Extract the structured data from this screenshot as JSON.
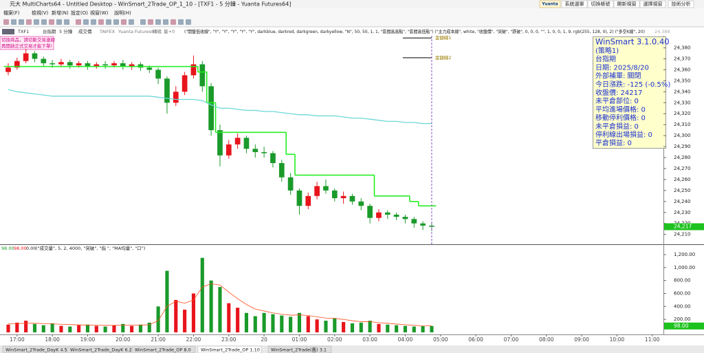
{
  "window": {
    "title": "元大 MultiCharts64 - Untitled Desktop - WinSmart_2Trade_OP_1_10 - [TXF1 - 5 分鐘 - Yuanta Futures64]",
    "logo": "Yuanta",
    "buttons": [
      "系統選單",
      "切換帳號",
      "開新視窗",
      "選擇視窗",
      "技術分析"
    ],
    "menu": [
      "檔案(F)",
      "檢視(V)",
      "新增(N)",
      "設定(O)",
      "視窗(W)",
      "說明(H)"
    ]
  },
  "chart_header": {
    "items": [
      "TXF1",
      "台指期",
      "5 分鐘",
      "成交價",
      "TAIFEX",
      "Yuanta Futures64",
      "精確",
      "量+0"
    ],
    "studies": "(\"開盤低收線\", \"Y\", \"Y\", \"Y\", \"Y\", \"Y\", darkblue, darkred, darkgreen, darkyellow, \"N\", 50, 50, 1, 1, \"區間高高點\", \"區間高低點\")   (\"主力成本線\", white, \"收盤價\", \"突破\", \"跌破\", 0, 0, 0, \"\", 1, 0, 0, 1, 9, rgb(255, 128, 0), 2)   (\"多空K線\", 20)",
    "right": "24,388"
  },
  "notice": [
    "切換商品，請切斷交易連線",
    "再開啟正式交易才能下單!"
  ],
  "info_box": {
    "title": "WinSmart 3.1.0.40",
    "lines": [
      "(策略1)",
      "台指期",
      "日期: 2025/8/20",
      "外部補單: 關閉",
      "今日漲跌: -125 (-0.5%)",
      "收盤價: 24217",
      "未平倉部位: 0",
      "平均進場價格: 0",
      "移動停利價格: 0",
      "未平倉損益: 0",
      "停利線出場損益: 0",
      "平倉損益: 0"
    ]
  },
  "chart_data": [
    {
      "type": "candlestick",
      "x": [
        "16:45",
        "17:00",
        "17:15",
        "17:30",
        "17:45",
        "18:00",
        "18:15",
        "18:30",
        "18:45",
        "19:00",
        "19:15",
        "19:30",
        "19:45",
        "20:00",
        "20:15",
        "20:30",
        "20:45",
        "21:00",
        "21:15",
        "21:30",
        "21:45",
        "22:00",
        "22:15",
        "22:30",
        "22:45",
        "23:00",
        "23:15",
        "23:30",
        "23:45",
        "00:00",
        "00:15",
        "00:30",
        "00:45",
        "01:00",
        "01:15",
        "01:30",
        "01:45",
        "02:00",
        "02:15",
        "02:30",
        "02:45",
        "03:00",
        "03:15",
        "03:30",
        "03:45",
        "04:00",
        "04:15",
        "04:30",
        "04:45"
      ],
      "open": [
        24358,
        24362,
        24368,
        24375,
        24370,
        24366,
        24365,
        24367,
        24364,
        24366,
        24363,
        24365,
        24364,
        24366,
        24363,
        24365,
        24362,
        24360,
        24352,
        24330,
        24340,
        24355,
        24365,
        24345,
        24305,
        24282,
        24292,
        24298,
        24288,
        24285,
        24284,
        24275,
        24262,
        24250,
        24236,
        24245,
        24254,
        24250,
        24243,
        24245,
        24240,
        24236,
        24225,
        24230,
        24228,
        24226,
        24224,
        24220,
        24218
      ],
      "high": [
        24366,
        24371,
        24379,
        24377,
        24372,
        24369,
        24370,
        24369,
        24368,
        24368,
        24367,
        24368,
        24368,
        24369,
        24367,
        24367,
        24364,
        24362,
        24354,
        24345,
        24358,
        24373,
        24368,
        24348,
        24310,
        24296,
        24302,
        24300,
        24292,
        24290,
        24286,
        24278,
        24266,
        24252,
        24248,
        24258,
        24260,
        24252,
        24249,
        24247,
        24243,
        24238,
        24233,
        24232,
        24230,
        24228,
        24226,
        24222,
        24221
      ],
      "low": [
        24355,
        24360,
        24366,
        24367,
        24363,
        24362,
        24363,
        24361,
        24362,
        24360,
        24361,
        24361,
        24362,
        24360,
        24360,
        24359,
        24357,
        24347,
        24320,
        24327,
        24337,
        24352,
        24340,
        24300,
        24272,
        24279,
        24288,
        24284,
        24280,
        24280,
        24271,
        24258,
        24246,
        24228,
        24233,
        24242,
        24247,
        24240,
        24238,
        24237,
        24232,
        24220,
        24222,
        24224,
        24223,
        24220,
        24216,
        24214,
        24213
      ],
      "close": [
        24362,
        24368,
        24375,
        24370,
        24366,
        24365,
        24367,
        24364,
        24366,
        24363,
        24365,
        24364,
        24366,
        24363,
        24365,
        24362,
        24360,
        24352,
        24330,
        24340,
        24355,
        24365,
        24345,
        24305,
        24282,
        24292,
        24298,
        24288,
        24285,
        24284,
        24275,
        24262,
        24250,
        24236,
        24245,
        24254,
        24250,
        24243,
        24245,
        24240,
        24236,
        24225,
        24230,
        24228,
        24226,
        24224,
        24220,
        24218,
        24217
      ],
      "colors": {
        "up": "#e8141c",
        "down": "#1a9a2a"
      },
      "lines": [
        {
          "color": "#22ee22",
          "step": true,
          "values": [
            24363,
            24363,
            24363,
            24363,
            24363,
            24363,
            24363,
            24363,
            24363,
            24363,
            24363,
            24363,
            24363,
            24363,
            24363,
            24363,
            24363,
            24363,
            24363,
            24363,
            24363,
            24363,
            24358,
            24330,
            24303,
            24303,
            24303,
            24303,
            24303,
            24303,
            24303,
            24303,
            24283,
            24264,
            24264,
            24264,
            24264,
            24264,
            24264,
            24264,
            24264,
            24264,
            24245,
            24245,
            24245,
            24245,
            24240,
            24236,
            24236
          ]
        },
        {
          "color": "#6fd8d8",
          "step": false,
          "values": [
            24342,
            24340,
            24339,
            24338,
            24337,
            24336,
            24336,
            24336,
            24336,
            24336,
            24336,
            24336,
            24336,
            24336,
            24336,
            24336,
            24336,
            24335,
            24334,
            24333,
            24333,
            24333,
            24332,
            24328,
            24325,
            24325,
            24324,
            24323,
            24323,
            24322,
            24322,
            24321,
            24320,
            24319,
            24319,
            24318,
            24318,
            24318,
            24317,
            24316,
            24316,
            24315,
            24314,
            24313,
            24313,
            24312,
            24312,
            24311,
            24311
          ]
        }
      ],
      "levels": [
        {
          "label": "金額線1",
          "value": 24389
        },
        {
          "label": "金額線2",
          "value": 24371
        }
      ],
      "last": {
        "value": 24217,
        "label": "24,217"
      },
      "xlim": [
        "16:31",
        "11:19"
      ],
      "ylim": [
        24201,
        24391
      ],
      "yticks": [
        {
          "value": 24210,
          "label": "24,210"
        },
        {
          "value": 24220,
          "label": "24,220"
        },
        {
          "value": 24230,
          "label": "24,230"
        },
        {
          "value": 24240,
          "label": "24,240"
        },
        {
          "value": 24250,
          "label": "24,250"
        },
        {
          "value": 24260,
          "label": "24,260"
        },
        {
          "value": 24270,
          "label": "24,270"
        },
        {
          "value": 24280,
          "label": "24,280"
        },
        {
          "value": 24290,
          "label": "24,290"
        },
        {
          "value": 24300,
          "label": "24,300"
        },
        {
          "value": 24310,
          "label": "24,310"
        },
        {
          "value": 24320,
          "label": "24,320"
        },
        {
          "value": 24330,
          "label": "24,330"
        },
        {
          "value": 24340,
          "label": "24,340"
        },
        {
          "value": 24350,
          "label": "24,350"
        },
        {
          "value": 24360,
          "label": "24,360"
        },
        {
          "value": 24370,
          "label": "24,370"
        },
        {
          "value": 24380,
          "label": "24,380"
        }
      ]
    },
    {
      "type": "bar",
      "header": [
        "98.00",
        "98.00",
        "0.00",
        "(\"成交量\", 5, 2, 4000, \"突破\", \"指 \", \"MA均量\", \"口\")"
      ],
      "x": [
        "16:45",
        "17:00",
        "17:15",
        "17:30",
        "17:45",
        "18:00",
        "18:15",
        "18:30",
        "18:45",
        "19:00",
        "19:15",
        "19:30",
        "19:45",
        "20:00",
        "20:15",
        "20:30",
        "20:45",
        "21:00",
        "21:15",
        "21:30",
        "21:45",
        "22:00",
        "22:15",
        "22:30",
        "22:45",
        "23:00",
        "23:15",
        "23:30",
        "23:45",
        "00:00",
        "00:15",
        "00:30",
        "00:45",
        "01:00",
        "01:15",
        "01:30",
        "01:45",
        "02:00",
        "02:15",
        "02:30",
        "02:45",
        "03:00",
        "03:15",
        "03:30",
        "03:45",
        "04:00",
        "04:15",
        "04:30",
        "04:45"
      ],
      "values": [
        120,
        150,
        180,
        130,
        110,
        140,
        100,
        90,
        110,
        120,
        100,
        90,
        110,
        130,
        100,
        120,
        150,
        400,
        950,
        500,
        350,
        600,
        1150,
        800,
        700,
        450,
        380,
        300,
        250,
        300,
        280,
        260,
        240,
        300,
        250,
        200,
        180,
        220,
        160,
        140,
        150,
        180,
        130,
        120,
        110,
        100,
        90,
        95,
        98
      ],
      "lines": [
        {
          "color": "#ff4a1a",
          "values": [
            130,
            135,
            140,
            140,
            135,
            130,
            125,
            120,
            115,
            112,
            110,
            108,
            108,
            110,
            110,
            112,
            118,
            180,
            400,
            480,
            450,
            500,
            700,
            750,
            730,
            620,
            520,
            430,
            360,
            330,
            300,
            280,
            265,
            270,
            260,
            240,
            220,
            215,
            200,
            180,
            165,
            165,
            150,
            140,
            128,
            118,
            108,
            102,
            100
          ]
        }
      ],
      "last": {
        "value": 98,
        "label": "98.00"
      },
      "xlim": [
        "16:31",
        "11:19"
      ],
      "ylim": [
        0,
        1338
      ],
      "yticks": [
        {
          "value": 200,
          "label": "200.00"
        },
        {
          "value": 400,
          "label": "400.00"
        },
        {
          "value": 600,
          "label": "600.00"
        },
        {
          "value": 800,
          "label": "800.00"
        },
        {
          "value": 1000,
          "label": "1,000.00"
        },
        {
          "value": 1200,
          "label": "1,200.00"
        }
      ],
      "xticks": [
        "17:00",
        "18:00",
        "19:00",
        "20:00",
        "21:00",
        "22:00",
        "23:00",
        {
          "value": "00:00",
          "label": "20"
        },
        "01:00",
        "02:00",
        "03:00",
        "04:00",
        "05:00",
        "06:00",
        "07:00",
        "08:00",
        "09:00",
        "10:00",
        "11:00"
      ]
    }
  ],
  "tabs": [
    "WinSmart_2Trade_DayK 4.5",
    "WinSmart_2Trade_DayK 6.2",
    "WinSmart_2Trade_OP 8.0",
    "WinSmart_2Trade_OP 1.10",
    "WinSmart_2Trade(舊) 3.1"
  ]
}
